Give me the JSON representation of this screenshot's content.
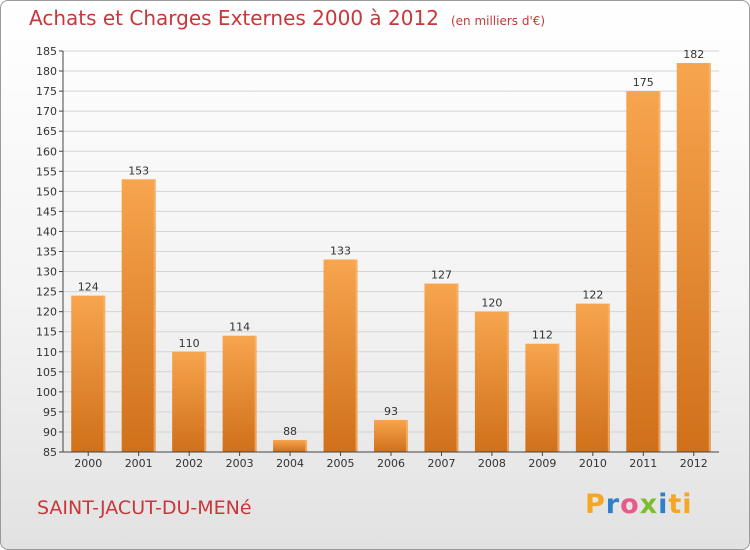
{
  "chart_data": {
    "type": "bar",
    "title": "Achats et Charges Externes 2000 à 2012",
    "subtitle": "(en milliers d'€)",
    "categories": [
      "2000",
      "2001",
      "2002",
      "2003",
      "2004",
      "2005",
      "2006",
      "2007",
      "2008",
      "2009",
      "2010",
      "2011",
      "2012"
    ],
    "values": [
      124,
      153,
      110,
      114,
      88,
      133,
      93,
      127,
      120,
      112,
      122,
      175,
      182
    ],
    "ylim": [
      85,
      185
    ],
    "yticks": [
      85,
      90,
      95,
      100,
      105,
      110,
      115,
      120,
      125,
      130,
      135,
      140,
      145,
      150,
      155,
      160,
      165,
      170,
      175,
      180,
      185
    ],
    "grid": true,
    "bar_color_top": "#f7a54e",
    "bar_color_bottom": "#d0701a"
  },
  "footer": {
    "commune": "SAINT-JACUT-DU-MENé",
    "brand": "Proxiti"
  },
  "colors": {
    "title": "#c8373a",
    "grid": "#d4d4d4",
    "axis": "#444444"
  }
}
